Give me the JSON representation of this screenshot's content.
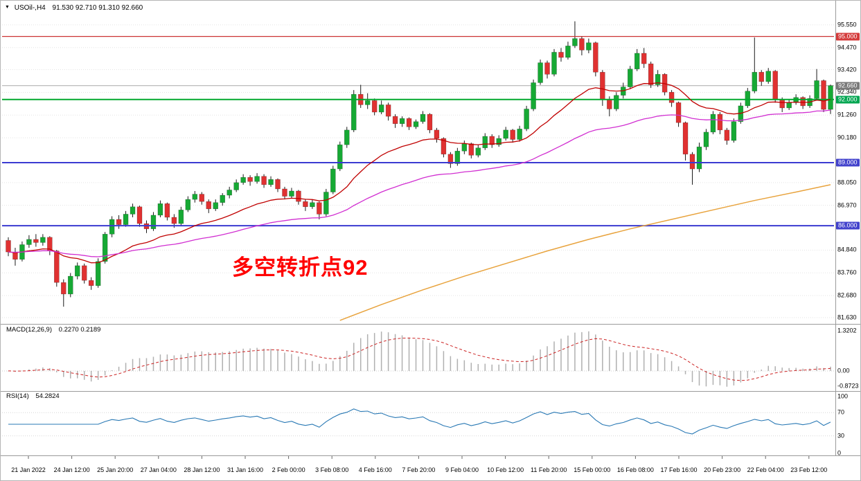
{
  "icons": {
    "dropdown": "▼"
  },
  "chart_data": {
    "type": "candlestick",
    "symbol_label": "USOil-,H4",
    "ohlc_text": "91.530 92.710 91.310 92.660",
    "price_axis": {
      "min": 81.43,
      "max": 96.37,
      "grid_labels": [
        "95.550",
        "94.470",
        "93.420",
        "92.340",
        "91.260",
        "90.180",
        "88.050",
        "86.970",
        "84.840",
        "83.760",
        "82.680",
        "81.630"
      ]
    },
    "time_labels": [
      "21 Jan 2022",
      "24 Jan 12:00",
      "25 Jan 20:00",
      "27 Jan 04:00",
      "28 Jan 12:00",
      "31 Jan 16:00",
      "2 Feb 00:00",
      "3 Feb 08:00",
      "4 Feb 16:00",
      "7 Feb 20:00",
      "9 Feb 04:00",
      "10 Feb 12:00",
      "11 Feb 20:00",
      "15 Feb 00:00",
      "16 Feb 08:00",
      "17 Feb 16:00",
      "20 Feb 23:00",
      "22 Feb 04:00",
      "23 Feb 12:00"
    ],
    "colors": {
      "up": "#16a934",
      "down": "#e03131",
      "wick": "#1a1a1a"
    },
    "candles": [
      [
        85.3,
        85.45,
        84.55,
        84.75
      ],
      [
        84.75,
        84.95,
        84.1,
        84.4
      ],
      [
        84.4,
        85.25,
        84.3,
        85.1
      ],
      [
        85.1,
        85.55,
        84.95,
        85.35
      ],
      [
        85.35,
        85.6,
        85.0,
        85.2
      ],
      [
        85.2,
        85.6,
        85.05,
        85.45
      ],
      [
        85.45,
        85.5,
        84.6,
        84.8
      ],
      [
        84.8,
        84.85,
        83.1,
        83.3
      ],
      [
        83.3,
        83.45,
        82.15,
        82.75
      ],
      [
        82.75,
        83.75,
        82.6,
        83.6
      ],
      [
        83.6,
        84.25,
        83.45,
        84.1
      ],
      [
        84.1,
        84.2,
        83.25,
        83.4
      ],
      [
        83.4,
        83.55,
        82.95,
        83.15
      ],
      [
        83.15,
        84.45,
        83.05,
        84.3
      ],
      [
        84.3,
        85.7,
        84.2,
        85.6
      ],
      [
        85.6,
        86.45,
        85.45,
        86.3
      ],
      [
        86.3,
        86.5,
        85.85,
        86.05
      ],
      [
        86.05,
        86.7,
        85.95,
        86.55
      ],
      [
        86.55,
        87.05,
        86.4,
        86.9
      ],
      [
        86.9,
        86.95,
        85.95,
        86.1
      ],
      [
        86.1,
        86.25,
        85.65,
        85.85
      ],
      [
        85.85,
        86.65,
        85.75,
        86.5
      ],
      [
        86.5,
        87.2,
        86.4,
        87.05
      ],
      [
        87.05,
        87.1,
        86.25,
        86.4
      ],
      [
        86.4,
        86.55,
        85.9,
        86.1
      ],
      [
        86.1,
        86.9,
        86.0,
        86.75
      ],
      [
        86.75,
        87.4,
        86.65,
        87.25
      ],
      [
        87.25,
        87.65,
        87.1,
        87.5
      ],
      [
        87.5,
        87.6,
        87.0,
        87.15
      ],
      [
        87.15,
        87.25,
        86.6,
        86.8
      ],
      [
        86.8,
        87.25,
        86.7,
        87.1
      ],
      [
        87.1,
        87.55,
        86.95,
        87.45
      ],
      [
        87.45,
        87.85,
        87.3,
        87.7
      ],
      [
        87.7,
        88.2,
        87.6,
        88.05
      ],
      [
        88.05,
        88.45,
        87.95,
        88.3
      ],
      [
        88.3,
        88.4,
        87.9,
        88.1
      ],
      [
        88.1,
        88.5,
        88.0,
        88.35
      ],
      [
        88.35,
        88.45,
        87.8,
        87.95
      ],
      [
        87.95,
        88.35,
        87.85,
        88.2
      ],
      [
        88.2,
        88.25,
        87.6,
        87.75
      ],
      [
        87.75,
        87.85,
        87.25,
        87.4
      ],
      [
        87.4,
        87.8,
        87.3,
        87.65
      ],
      [
        87.65,
        87.7,
        87.0,
        87.15
      ],
      [
        87.15,
        87.25,
        86.7,
        86.9
      ],
      [
        86.9,
        87.25,
        86.8,
        87.1
      ],
      [
        87.1,
        87.15,
        86.3,
        86.55
      ],
      [
        86.55,
        87.75,
        86.45,
        87.6
      ],
      [
        87.6,
        88.85,
        87.5,
        88.7
      ],
      [
        88.7,
        90.0,
        88.6,
        89.85
      ],
      [
        89.85,
        90.7,
        89.7,
        90.55
      ],
      [
        90.55,
        92.45,
        90.45,
        92.25
      ],
      [
        92.25,
        92.7,
        91.6,
        91.75
      ],
      [
        91.75,
        92.3,
        91.55,
        91.95
      ],
      [
        91.95,
        92.05,
        91.25,
        91.4
      ],
      [
        91.4,
        91.95,
        91.3,
        91.75
      ],
      [
        91.75,
        91.85,
        91.0,
        91.2
      ],
      [
        91.2,
        91.3,
        90.65,
        90.85
      ],
      [
        90.85,
        91.2,
        90.7,
        91.1
      ],
      [
        91.1,
        91.15,
        90.55,
        90.7
      ],
      [
        90.7,
        91.05,
        90.6,
        90.95
      ],
      [
        90.95,
        91.45,
        90.85,
        91.3
      ],
      [
        91.3,
        91.35,
        90.4,
        90.55
      ],
      [
        90.55,
        90.65,
        89.95,
        90.15
      ],
      [
        90.15,
        90.2,
        89.25,
        89.4
      ],
      [
        89.4,
        89.5,
        88.75,
        88.95
      ],
      [
        88.95,
        89.7,
        88.85,
        89.55
      ],
      [
        89.55,
        90.05,
        89.4,
        89.9
      ],
      [
        89.9,
        89.95,
        89.2,
        89.35
      ],
      [
        89.35,
        89.85,
        89.25,
        89.7
      ],
      [
        89.7,
        90.4,
        89.6,
        90.25
      ],
      [
        90.25,
        90.35,
        89.7,
        89.85
      ],
      [
        89.85,
        90.3,
        89.75,
        90.15
      ],
      [
        90.15,
        90.7,
        90.05,
        90.55
      ],
      [
        90.55,
        90.6,
        89.95,
        90.1
      ],
      [
        90.1,
        90.75,
        90.0,
        90.6
      ],
      [
        90.6,
        91.7,
        90.5,
        91.55
      ],
      [
        91.55,
        92.95,
        91.45,
        92.8
      ],
      [
        92.8,
        93.9,
        92.7,
        93.75
      ],
      [
        93.75,
        93.85,
        93.0,
        93.2
      ],
      [
        93.2,
        94.4,
        93.1,
        94.25
      ],
      [
        94.25,
        94.45,
        93.8,
        94.0
      ],
      [
        94.0,
        94.75,
        93.9,
        94.55
      ],
      [
        94.55,
        95.72,
        94.45,
        94.9
      ],
      [
        94.9,
        95.0,
        94.1,
        94.35
      ],
      [
        94.35,
        94.9,
        94.2,
        94.7
      ],
      [
        94.7,
        94.75,
        93.1,
        93.3
      ],
      [
        93.3,
        93.4,
        91.7,
        92.0
      ],
      [
        92.0,
        92.15,
        91.2,
        91.55
      ],
      [
        91.55,
        92.35,
        91.45,
        92.2
      ],
      [
        92.2,
        92.8,
        92.05,
        92.6
      ],
      [
        92.6,
        93.6,
        92.5,
        93.45
      ],
      [
        93.45,
        94.4,
        93.35,
        94.2
      ],
      [
        94.2,
        94.45,
        93.5,
        93.7
      ],
      [
        93.7,
        93.8,
        92.55,
        92.7
      ],
      [
        92.7,
        93.4,
        92.6,
        93.2
      ],
      [
        93.2,
        93.25,
        92.2,
        92.35
      ],
      [
        92.35,
        92.45,
        91.65,
        91.85
      ],
      [
        91.85,
        91.9,
        90.7,
        90.9
      ],
      [
        90.9,
        90.95,
        89.1,
        89.4
      ],
      [
        89.4,
        89.5,
        87.95,
        88.7
      ],
      [
        88.7,
        89.95,
        88.55,
        89.75
      ],
      [
        89.75,
        90.6,
        89.6,
        90.45
      ],
      [
        90.45,
        91.45,
        90.35,
        91.3
      ],
      [
        91.3,
        91.4,
        90.35,
        90.55
      ],
      [
        90.55,
        90.65,
        89.85,
        90.05
      ],
      [
        90.05,
        91.1,
        89.95,
        90.95
      ],
      [
        90.95,
        91.85,
        90.85,
        91.7
      ],
      [
        91.7,
        92.55,
        91.6,
        92.4
      ],
      [
        92.4,
        94.95,
        92.3,
        93.3
      ],
      [
        93.3,
        93.4,
        92.65,
        92.85
      ],
      [
        92.85,
        93.5,
        92.75,
        93.35
      ],
      [
        93.35,
        93.4,
        91.85,
        92.0
      ],
      [
        92.0,
        92.1,
        91.4,
        91.6
      ],
      [
        91.6,
        92.0,
        91.5,
        91.85
      ],
      [
        91.85,
        92.25,
        91.75,
        92.1
      ],
      [
        92.1,
        92.15,
        91.55,
        91.7
      ],
      [
        91.7,
        92.2,
        91.6,
        92.05
      ],
      [
        92.05,
        93.45,
        91.95,
        92.9
      ],
      [
        92.9,
        92.95,
        91.4,
        91.53
      ],
      [
        91.53,
        92.71,
        91.31,
        92.66
      ]
    ],
    "overlays": {
      "ma_red": {
        "period": 21,
        "color": "#c00000"
      },
      "ma_magenta": {
        "period": 55,
        "color": "#d12ed1"
      },
      "ma_orange": {
        "color": "#e8a33d",
        "points": [
          [
            48,
            81.5
          ],
          [
            54,
            82.25
          ],
          [
            60,
            82.95
          ],
          [
            66,
            83.6
          ],
          [
            72,
            84.2
          ],
          [
            78,
            84.8
          ],
          [
            84,
            85.35
          ],
          [
            90,
            85.85
          ],
          [
            96,
            86.3
          ],
          [
            102,
            86.75
          ],
          [
            108,
            87.2
          ],
          [
            114,
            87.6
          ],
          [
            119,
            87.95
          ]
        ]
      }
    },
    "hlines": [
      {
        "price": 95.0,
        "label": "95.000",
        "color": "#cc3333",
        "badge": "#d43b3b",
        "width": 1.2
      },
      {
        "price": 92.0,
        "label": "92.000",
        "color": "#00a82d",
        "badge": "#00a651",
        "width": 2
      },
      {
        "price": 89.0,
        "label": "89.000",
        "color": "#3a3ad1",
        "badge": "#4242cc",
        "width": 2
      },
      {
        "price": 86.0,
        "label": "86.000",
        "color": "#3a3ad1",
        "badge": "#4242cc",
        "width": 2
      }
    ],
    "bid_line": {
      "price": 92.66,
      "label": "92.660",
      "color": "#a8a8a8",
      "badge": "#7a7a7a"
    },
    "annotation": {
      "text": "多空转折点92",
      "color": "#ff0000"
    },
    "indicators": {
      "macd": {
        "name": "MACD(12,26,9)",
        "values": "0.2270 0.2189",
        "fast": 12,
        "slow": 26,
        "signal": 9,
        "histogram_color": "#b0b0b0",
        "signal_color": "#cc2222",
        "scale_max": "1.3202",
        "scale_zero": "0.00",
        "scale_min": "-0.8723"
      },
      "rsi": {
        "name": "RSI(14)",
        "value": "54.2824",
        "period": 14,
        "color": "#2878b4",
        "scale_labels": [
          [
            "100",
            100
          ],
          [
            "70",
            70
          ],
          [
            "30",
            30
          ],
          [
            "0",
            0
          ]
        ],
        "levels": [
          70,
          30
        ]
      }
    }
  }
}
